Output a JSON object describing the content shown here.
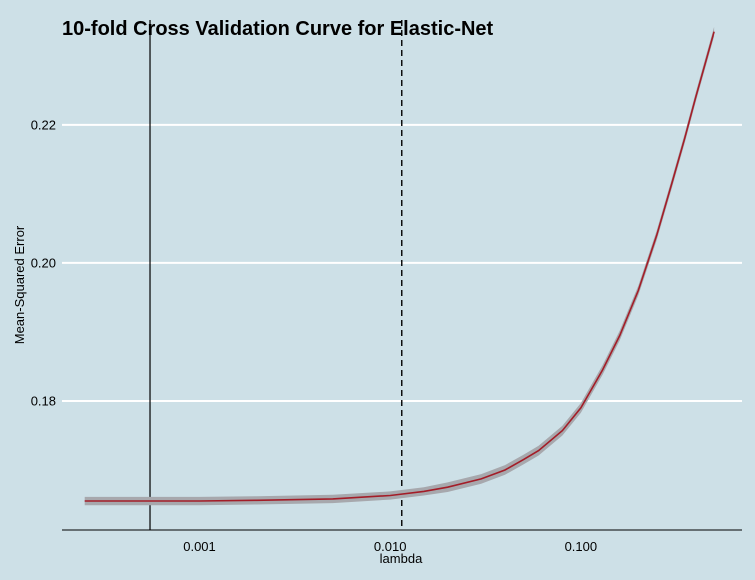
{
  "chart_data": {
    "type": "line",
    "title": "10-fold Cross Validation Curve for Elastic-Net",
    "xlabel": "lambda",
    "ylabel": "Mean-Squared Error",
    "x_scale": "log10",
    "xlim": [
      0.00019,
      0.7
    ],
    "ylim": [
      0.1613,
      0.2323
    ],
    "x_ticks": [
      0.001,
      0.01,
      0.1
    ],
    "x_tick_labels": [
      "0.001",
      "0.010",
      "0.100"
    ],
    "y_ticks": [
      0.18,
      0.2,
      0.22
    ],
    "y_tick_labels": [
      "0.18",
      "0.20",
      "0.22"
    ],
    "grid": "horizontal",
    "lambda_min": 0.00055,
    "lambda_1se": 0.0115,
    "colors": {
      "background": "#cde0e7",
      "line": "#a31d28",
      "band": "#a7a8ad",
      "grid": "#ffffff",
      "axis": "#000000"
    },
    "series": [
      {
        "x": [
          0.00025,
          0.0005,
          0.001,
          0.002,
          0.005,
          0.01,
          0.015,
          0.02,
          0.03,
          0.04,
          0.05,
          0.06,
          0.08,
          0.1,
          0.13,
          0.16,
          0.2,
          0.25,
          0.3,
          0.35,
          0.4,
          0.45,
          0.5
        ],
        "y": [
          0.1655,
          0.1655,
          0.1655,
          0.1656,
          0.1658,
          0.1663,
          0.1669,
          0.1675,
          0.1687,
          0.17,
          0.1715,
          0.1728,
          0.1757,
          0.179,
          0.1845,
          0.1895,
          0.196,
          0.204,
          0.2115,
          0.218,
          0.224,
          0.229,
          0.2335
        ],
        "y_lower": [
          0.1649,
          0.1649,
          0.1649,
          0.165,
          0.1652,
          0.1657,
          0.1663,
          0.1668,
          0.168,
          0.1693,
          0.1708,
          0.1721,
          0.175,
          0.1783,
          0.1838,
          0.1888,
          0.1953,
          0.2033,
          0.2108,
          0.2173,
          0.2233,
          0.2283,
          0.2328
        ],
        "y_upper": [
          0.1661,
          0.1661,
          0.1661,
          0.1662,
          0.1664,
          0.1669,
          0.1675,
          0.1682,
          0.1694,
          0.1707,
          0.1722,
          0.1735,
          0.1764,
          0.1797,
          0.1852,
          0.1902,
          0.1967,
          0.2047,
          0.2122,
          0.2187,
          0.2247,
          0.2297,
          0.2342
        ]
      }
    ]
  }
}
